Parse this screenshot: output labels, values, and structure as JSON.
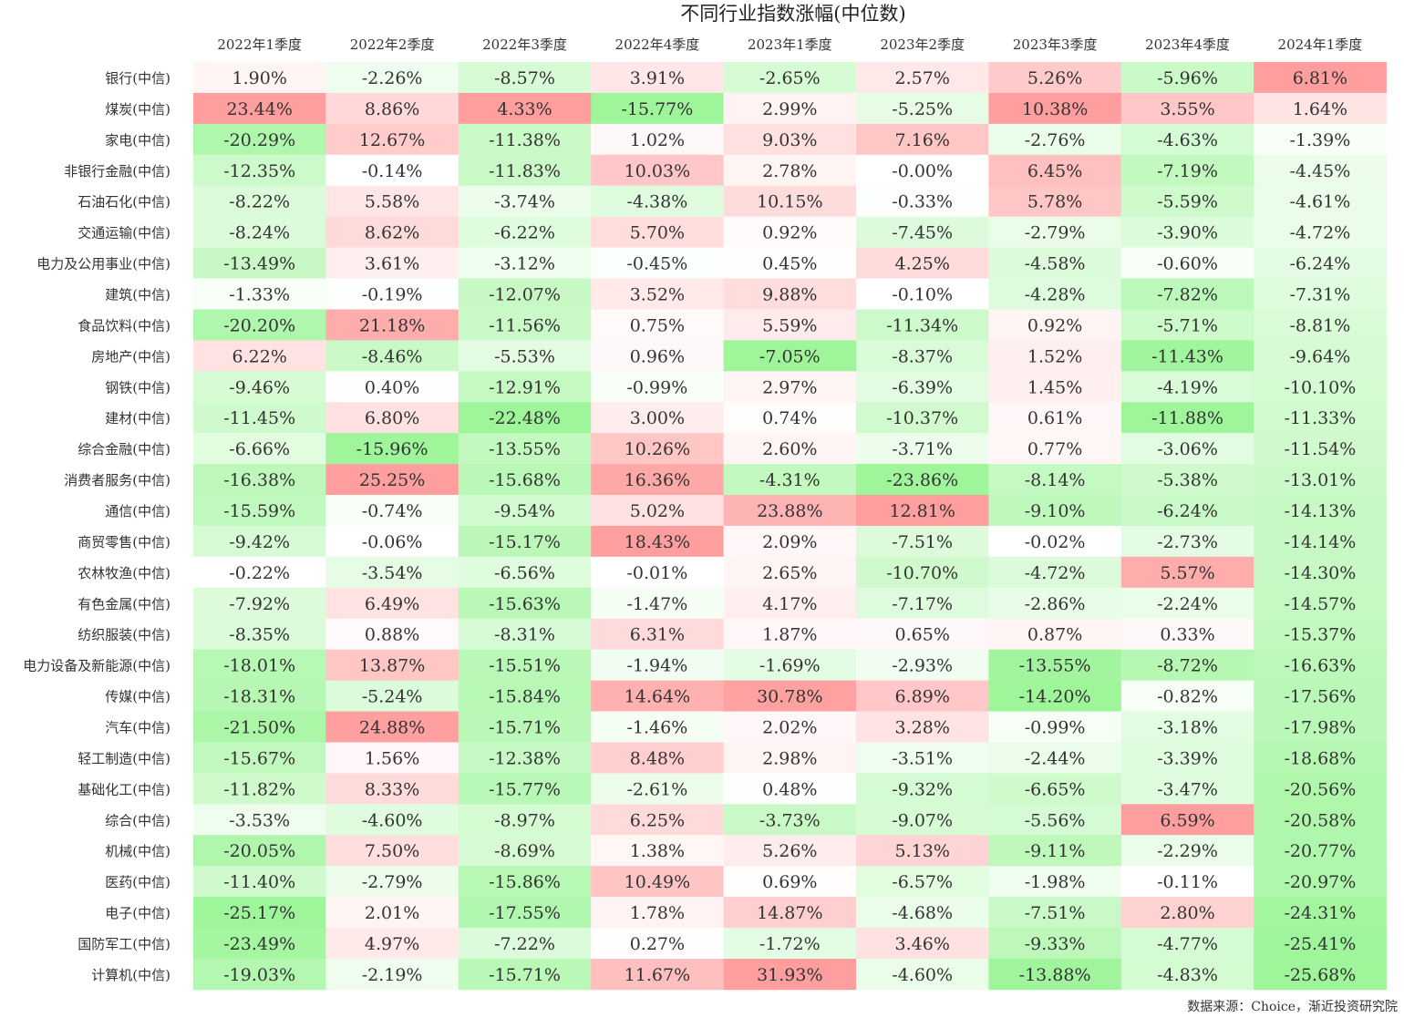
{
  "chart_data": {
    "type": "heatmap",
    "title": "不同行业指数涨幅(中位数)",
    "source": "数据来源：Choice，渐近投资研究院",
    "columns": [
      "2022年1季度",
      "2022年2季度",
      "2022年3季度",
      "2022年4季度",
      "2023年1季度",
      "2023年2季度",
      "2023年3季度",
      "2023年4季度",
      "2024年1季度"
    ],
    "rows": [
      "银行(中信)",
      "煤炭(中信)",
      "家电(中信)",
      "非银行金融(中信)",
      "石油石化(中信)",
      "交通运输(中信)",
      "电力及公用事业(中信)",
      "建筑(中信)",
      "食品饮料(中信)",
      "房地产(中信)",
      "钢铁(中信)",
      "建材(中信)",
      "综合金融(中信)",
      "消费者服务(中信)",
      "通信(中信)",
      "商贸零售(中信)",
      "农林牧渔(中信)",
      "有色金属(中信)",
      "纺织服装(中信)",
      "电力设备及新能源(中信)",
      "传媒(中信)",
      "汽车(中信)",
      "轻工制造(中信)",
      "基础化工(中信)",
      "综合(中信)",
      "机械(中信)",
      "医药(中信)",
      "电子(中信)",
      "国防军工(中信)",
      "计算机(中信)"
    ],
    "values": [
      [
        "1.90%",
        "-2.26%",
        "-8.57%",
        "3.91%",
        "-2.65%",
        "2.57%",
        "5.26%",
        "-5.96%",
        "6.81%"
      ],
      [
        "23.44%",
        "8.86%",
        "4.33%",
        "-15.77%",
        "2.99%",
        "-5.25%",
        "10.38%",
        "3.55%",
        "1.64%"
      ],
      [
        "-20.29%",
        "12.67%",
        "-11.38%",
        "1.02%",
        "9.03%",
        "7.16%",
        "-2.76%",
        "-4.63%",
        "-1.39%"
      ],
      [
        "-12.35%",
        "-0.14%",
        "-11.83%",
        "10.03%",
        "2.78%",
        "-0.00%",
        "6.45%",
        "-7.19%",
        "-4.45%"
      ],
      [
        "-8.22%",
        "5.58%",
        "-3.74%",
        "-4.38%",
        "10.15%",
        "-0.33%",
        "5.78%",
        "-5.59%",
        "-4.61%"
      ],
      [
        "-8.24%",
        "8.62%",
        "-6.22%",
        "5.70%",
        "0.92%",
        "-7.45%",
        "-2.79%",
        "-3.90%",
        "-4.72%"
      ],
      [
        "-13.49%",
        "3.61%",
        "-3.12%",
        "-0.45%",
        "0.45%",
        "4.25%",
        "-4.58%",
        "-0.60%",
        "-6.24%"
      ],
      [
        "-1.33%",
        "-0.19%",
        "-12.07%",
        "3.52%",
        "9.88%",
        "-0.10%",
        "-4.28%",
        "-7.82%",
        "-7.31%"
      ],
      [
        "-20.20%",
        "21.18%",
        "-11.56%",
        "0.75%",
        "5.59%",
        "-11.34%",
        "0.92%",
        "-5.71%",
        "-8.81%"
      ],
      [
        "6.22%",
        "-8.46%",
        "-5.53%",
        "0.96%",
        "-7.05%",
        "-8.37%",
        "1.52%",
        "-11.43%",
        "-9.64%"
      ],
      [
        "-9.46%",
        "0.40%",
        "-12.91%",
        "-0.99%",
        "2.97%",
        "-6.39%",
        "1.45%",
        "-4.19%",
        "-10.10%"
      ],
      [
        "-11.45%",
        "6.80%",
        "-22.48%",
        "3.00%",
        "0.74%",
        "-10.37%",
        "0.61%",
        "-11.88%",
        "-11.33%"
      ],
      [
        "-6.66%",
        "-15.96%",
        "-13.55%",
        "10.26%",
        "2.60%",
        "-3.71%",
        "0.77%",
        "-3.06%",
        "-11.54%"
      ],
      [
        "-16.38%",
        "25.25%",
        "-15.68%",
        "16.36%",
        "-4.31%",
        "-23.86%",
        "-8.14%",
        "-5.38%",
        "-13.01%"
      ],
      [
        "-15.59%",
        "-0.74%",
        "-9.54%",
        "5.02%",
        "23.88%",
        "12.81%",
        "-9.10%",
        "-6.24%",
        "-14.13%"
      ],
      [
        "-9.42%",
        "-0.06%",
        "-15.17%",
        "18.43%",
        "2.09%",
        "-7.51%",
        "-0.02%",
        "-2.73%",
        "-14.14%"
      ],
      [
        "-0.22%",
        "-3.54%",
        "-6.56%",
        "-0.01%",
        "2.65%",
        "-10.70%",
        "-4.72%",
        "5.57%",
        "-14.30%"
      ],
      [
        "-7.92%",
        "6.49%",
        "-15.63%",
        "-1.47%",
        "4.17%",
        "-7.17%",
        "-2.86%",
        "-2.24%",
        "-14.57%"
      ],
      [
        "-8.35%",
        "0.88%",
        "-8.31%",
        "6.31%",
        "1.87%",
        "0.65%",
        "0.87%",
        "0.33%",
        "-15.37%"
      ],
      [
        "-18.01%",
        "13.87%",
        "-15.51%",
        "-1.94%",
        "-1.69%",
        "-2.93%",
        "-13.55%",
        "-8.72%",
        "-16.63%"
      ],
      [
        "-18.31%",
        "-5.24%",
        "-15.84%",
        "14.64%",
        "30.78%",
        "6.89%",
        "-14.20%",
        "-0.82%",
        "-17.56%"
      ],
      [
        "-21.50%",
        "24.88%",
        "-15.71%",
        "-1.46%",
        "2.02%",
        "3.28%",
        "-0.99%",
        "-3.18%",
        "-17.98%"
      ],
      [
        "-15.67%",
        "1.56%",
        "-12.38%",
        "8.48%",
        "2.98%",
        "-3.51%",
        "-2.44%",
        "-3.39%",
        "-18.68%"
      ],
      [
        "-11.82%",
        "8.33%",
        "-15.77%",
        "-2.61%",
        "0.48%",
        "-9.32%",
        "-6.65%",
        "-3.47%",
        "-20.56%"
      ],
      [
        "-3.53%",
        "-4.60%",
        "-8.97%",
        "6.25%",
        "-3.73%",
        "-9.07%",
        "-5.56%",
        "6.59%",
        "-20.58%"
      ],
      [
        "-20.05%",
        "7.50%",
        "-8.69%",
        "1.38%",
        "5.26%",
        "5.13%",
        "-9.11%",
        "-2.29%",
        "-20.77%"
      ],
      [
        "-11.40%",
        "-2.79%",
        "-15.86%",
        "10.49%",
        "0.69%",
        "-6.57%",
        "-1.98%",
        "-0.11%",
        "-20.97%"
      ],
      [
        "-25.17%",
        "2.01%",
        "-17.55%",
        "1.78%",
        "14.87%",
        "-4.68%",
        "-7.51%",
        "2.80%",
        "-24.31%"
      ],
      [
        "-23.49%",
        "4.97%",
        "-7.22%",
        "0.27%",
        "-1.72%",
        "3.46%",
        "-9.33%",
        "-4.77%",
        "-25.41%"
      ],
      [
        "-19.03%",
        "-2.19%",
        "-15.71%",
        "11.67%",
        "31.93%",
        "-4.60%",
        "-13.88%",
        "-4.83%",
        "-25.68%"
      ]
    ],
    "colors": {
      "positive": "#ff9e9e",
      "negative": "#9ef59a",
      "neutral": "#ffffff"
    }
  }
}
